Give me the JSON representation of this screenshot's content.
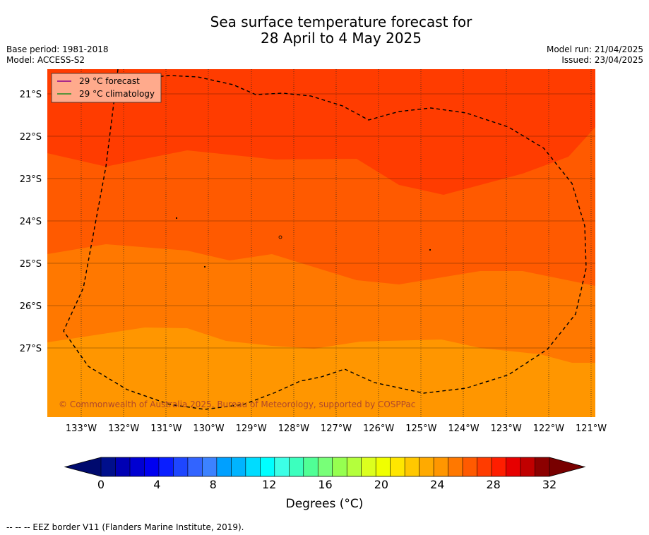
{
  "title_line1": "Sea surface temperature forecast for",
  "title_line2": "28 April to 4 May 2025",
  "base_period": "Base period: 1981-2018",
  "model": "Model: ACCESS-S2",
  "model_run": "Model run: 21/04/2025",
  "issued": "Issued: 23/04/2025",
  "legend": {
    "forecast_label": "29 °C  forecast",
    "forecast_color": "#8b008b",
    "climatology_label": "29 °C  climatology",
    "climatology_color": "#228b22"
  },
  "copyright": "© Commonwealth of Australia 2025, Bureau of Meteorology, supported by COSPPac",
  "lat_ticks": [
    "21°S",
    "22°S",
    "23°S",
    "24°S",
    "25°S",
    "26°S",
    "27°S"
  ],
  "lon_ticks": [
    "133°W",
    "132°W",
    "131°W",
    "130°W",
    "129°W",
    "128°W",
    "127°W",
    "126°W",
    "125°W",
    "124°W",
    "123°W",
    "122°W",
    "121°W"
  ],
  "colorbar": {
    "tick_labels": [
      "0",
      "4",
      "8",
      "12",
      "16",
      "20",
      "24",
      "28",
      "32"
    ],
    "label": "Degrees (°C)",
    "colors": [
      "#000f8c",
      "#0000b4",
      "#0000d2",
      "#0000f0",
      "#0a1eff",
      "#1e46ff",
      "#3264ff",
      "#3c82ff",
      "#00a0ff",
      "#00b4ff",
      "#00dcff",
      "#00ffff",
      "#3cffe6",
      "#3cffbe",
      "#50ff96",
      "#78ff78",
      "#96ff50",
      "#b4ff3c",
      "#dcff1e",
      "#f0ff00",
      "#ffe600",
      "#ffc800",
      "#ffaa00",
      "#ff9600",
      "#ff7800",
      "#ff5a00",
      "#ff3c00",
      "#ff1e00",
      "#e60000",
      "#c00000",
      "#8c0000"
    ],
    "under_color": "#000a6e",
    "over_color": "#780000"
  },
  "sst_band_colors": [
    "#ff3c00",
    "#ff5a00",
    "#ff7800",
    "#ff9600"
  ],
  "footnote": "--  --  -- EEZ border V11 (Flanders Marine Institute, 2019)."
}
